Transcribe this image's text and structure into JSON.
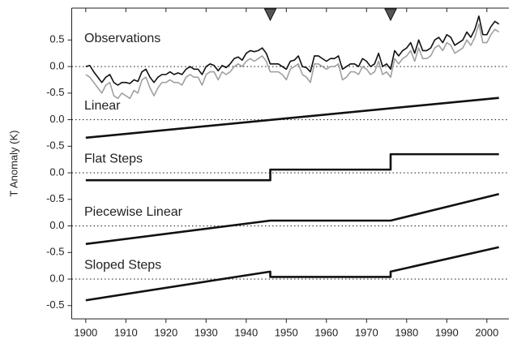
{
  "chart_data": [
    {
      "type": "line",
      "title": "Observations",
      "ylim": [
        -0.5,
        1.1
      ],
      "yticks": [
        0.5,
        {
          "value": 0,
          "label": "0.0"
        },
        -0.5
      ],
      "refline": 0,
      "annotations_x": [
        1946,
        1976
      ],
      "x": [
        1900,
        1901,
        1902,
        1903,
        1904,
        1905,
        1906,
        1907,
        1908,
        1909,
        1910,
        1911,
        1912,
        1913,
        1914,
        1915,
        1916,
        1917,
        1918,
        1919,
        1920,
        1921,
        1922,
        1923,
        1924,
        1925,
        1926,
        1927,
        1928,
        1929,
        1930,
        1931,
        1932,
        1933,
        1934,
        1935,
        1936,
        1937,
        1938,
        1939,
        1940,
        1941,
        1942,
        1943,
        1944,
        1945,
        1946,
        1947,
        1948,
        1949,
        1950,
        1951,
        1952,
        1953,
        1954,
        1955,
        1956,
        1957,
        1958,
        1959,
        1960,
        1961,
        1962,
        1963,
        1964,
        1965,
        1966,
        1967,
        1968,
        1969,
        1970,
        1971,
        1972,
        1973,
        1974,
        1975,
        1976,
        1977,
        1978,
        1979,
        1980,
        1981,
        1982,
        1983,
        1984,
        1985,
        1986,
        1987,
        1988,
        1989,
        1990,
        1991,
        1992,
        1993,
        1994,
        1995,
        1996,
        1997,
        1998,
        1999,
        2000,
        2001,
        2002,
        2003
      ],
      "series": [
        {
          "color": "#a0a0a0",
          "values": [
            -0.15,
            -0.2,
            -0.3,
            -0.4,
            -0.5,
            -0.35,
            -0.3,
            -0.55,
            -0.6,
            -0.5,
            -0.55,
            -0.6,
            -0.45,
            -0.5,
            -0.25,
            -0.2,
            -0.4,
            -0.55,
            -0.4,
            -0.3,
            -0.3,
            -0.25,
            -0.3,
            -0.3,
            -0.35,
            -0.2,
            -0.15,
            -0.2,
            -0.2,
            -0.35,
            -0.15,
            -0.1,
            -0.1,
            -0.25,
            -0.1,
            -0.15,
            -0.1,
            0.0,
            0.05,
            0.0,
            0.1,
            0.15,
            0.1,
            0.15,
            0.2,
            0.1,
            -0.1,
            -0.1,
            -0.1,
            -0.15,
            -0.25,
            -0.05,
            0.0,
            0.05,
            -0.15,
            -0.2,
            -0.3,
            0.05,
            0.05,
            0.0,
            -0.05,
            0.0,
            0.0,
            0.05,
            -0.25,
            -0.2,
            -0.1,
            -0.1,
            -0.15,
            0.0,
            -0.05,
            -0.15,
            -0.1,
            0.1,
            -0.15,
            -0.1,
            -0.2,
            0.15,
            0.05,
            0.15,
            0.2,
            0.3,
            0.1,
            0.35,
            0.15,
            0.15,
            0.2,
            0.35,
            0.4,
            0.3,
            0.45,
            0.4,
            0.25,
            0.3,
            0.35,
            0.5,
            0.4,
            0.55,
            0.8,
            0.45,
            0.45,
            0.6,
            0.7,
            0.65
          ]
        },
        {
          "color": "#111111",
          "values": [
            0.0,
            0.02,
            -0.1,
            -0.2,
            -0.3,
            -0.2,
            -0.15,
            -0.3,
            -0.35,
            -0.3,
            -0.3,
            -0.32,
            -0.25,
            -0.28,
            -0.1,
            -0.05,
            -0.2,
            -0.3,
            -0.2,
            -0.15,
            -0.15,
            -0.1,
            -0.15,
            -0.12,
            -0.15,
            -0.05,
            0.0,
            -0.05,
            -0.05,
            -0.15,
            0.0,
            0.05,
            0.02,
            -0.08,
            0.02,
            -0.02,
            0.05,
            0.15,
            0.18,
            0.12,
            0.25,
            0.3,
            0.28,
            0.3,
            0.35,
            0.25,
            0.05,
            0.05,
            0.05,
            0.0,
            -0.05,
            0.1,
            0.12,
            0.2,
            0.0,
            -0.02,
            -0.1,
            0.2,
            0.2,
            0.15,
            0.1,
            0.15,
            0.15,
            0.2,
            -0.05,
            0.0,
            0.05,
            0.05,
            0.0,
            0.15,
            0.1,
            0.0,
            0.05,
            0.25,
            0.0,
            0.05,
            -0.05,
            0.3,
            0.2,
            0.3,
            0.35,
            0.45,
            0.25,
            0.5,
            0.3,
            0.3,
            0.35,
            0.5,
            0.55,
            0.45,
            0.6,
            0.55,
            0.4,
            0.45,
            0.5,
            0.65,
            0.55,
            0.7,
            0.95,
            0.6,
            0.6,
            0.75,
            0.85,
            0.8
          ]
        }
      ]
    },
    {
      "type": "line",
      "title": "Linear",
      "ylim": [
        -0.5,
        0.5
      ],
      "yticks": [
        {
          "value": 0,
          "label": "0.0"
        },
        -0.5
      ],
      "refline": 0,
      "x": [
        1900,
        2003
      ],
      "series": [
        {
          "color": "#111111",
          "values": [
            -0.34,
            0.41
          ]
        }
      ]
    },
    {
      "type": "line",
      "title": "Flat Steps",
      "ylim": [
        -0.5,
        0.5
      ],
      "yticks": [
        {
          "value": 0,
          "label": "0.0"
        },
        -0.5
      ],
      "refline": 0,
      "x": [
        1900,
        1946,
        1946,
        1976,
        1976,
        2003
      ],
      "series": [
        {
          "color": "#111111",
          "values": [
            -0.14,
            -0.14,
            0.06,
            0.06,
            0.35,
            0.35
          ]
        }
      ]
    },
    {
      "type": "line",
      "title": "Piecewise Linear",
      "ylim": [
        -0.5,
        0.5
      ],
      "yticks": [
        {
          "value": 0,
          "label": "0.0"
        },
        -0.5
      ],
      "refline": 0,
      "x": [
        1900,
        1946,
        1976,
        2003
      ],
      "series": [
        {
          "color": "#111111",
          "values": [
            -0.34,
            0.1,
            0.1,
            0.6
          ]
        }
      ]
    },
    {
      "type": "line",
      "title": "Sloped Steps",
      "ylim": [
        -0.75,
        0.5
      ],
      "yticks": [
        {
          "value": 0,
          "label": "0.0"
        },
        -0.5
      ],
      "refline": 0,
      "y_label": "T Anomaly (K)",
      "xlim": [
        1896.5,
        2005.5
      ],
      "xticks": [
        1900,
        1910,
        1920,
        1930,
        1940,
        1950,
        1960,
        1970,
        1980,
        1990,
        2000
      ],
      "x": [
        1900,
        1946,
        1946,
        1976,
        1976,
        2003
      ],
      "series": [
        {
          "color": "#111111",
          "values": [
            -0.4,
            0.14,
            0.04,
            0.04,
            0.14,
            0.6
          ]
        }
      ]
    }
  ]
}
